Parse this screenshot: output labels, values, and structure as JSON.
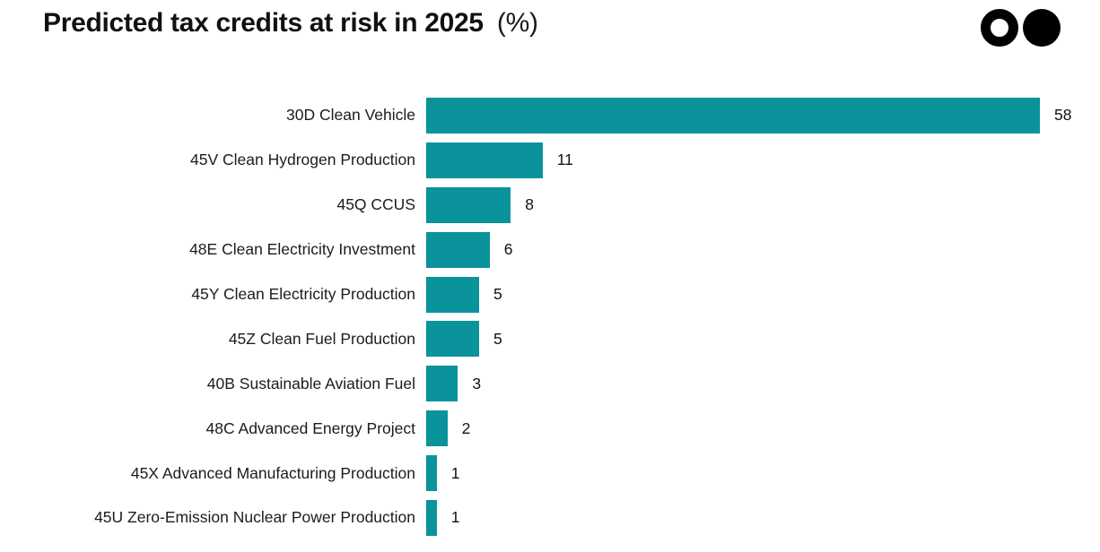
{
  "header": {
    "title": "Predicted tax credits at risk in 2025",
    "title_suffix": "(%)"
  },
  "logo": {
    "icons": [
      "ring-circle",
      "filled-circle"
    ],
    "color": "#000000"
  },
  "chart_data": {
    "type": "bar",
    "orientation": "horizontal",
    "title": "Predicted tax credits at risk in 2025 (%)",
    "xlabel": "",
    "ylabel": "",
    "categories": [
      "30D Clean Vehicle",
      "45V Clean Hydrogen Production",
      "45Q CCUS",
      "48E Clean Electricity Investment",
      "45Y Clean Electricity Production",
      "45Z Clean Fuel Production",
      "40B Sustainable Aviation Fuel",
      "48C Advanced Energy Project",
      "45X Advanced Manufacturing Production",
      "45U Zero-Emission Nuclear Power Production"
    ],
    "values": [
      58,
      11,
      8,
      6,
      5,
      5,
      3,
      2,
      1,
      1
    ],
    "unit": "%",
    "bar_color": "#0A939B",
    "text_color": "#1c1c1c",
    "xlim": [
      0,
      58
    ],
    "grid": false,
    "legend": false,
    "value_labels": "end-of-bar"
  }
}
